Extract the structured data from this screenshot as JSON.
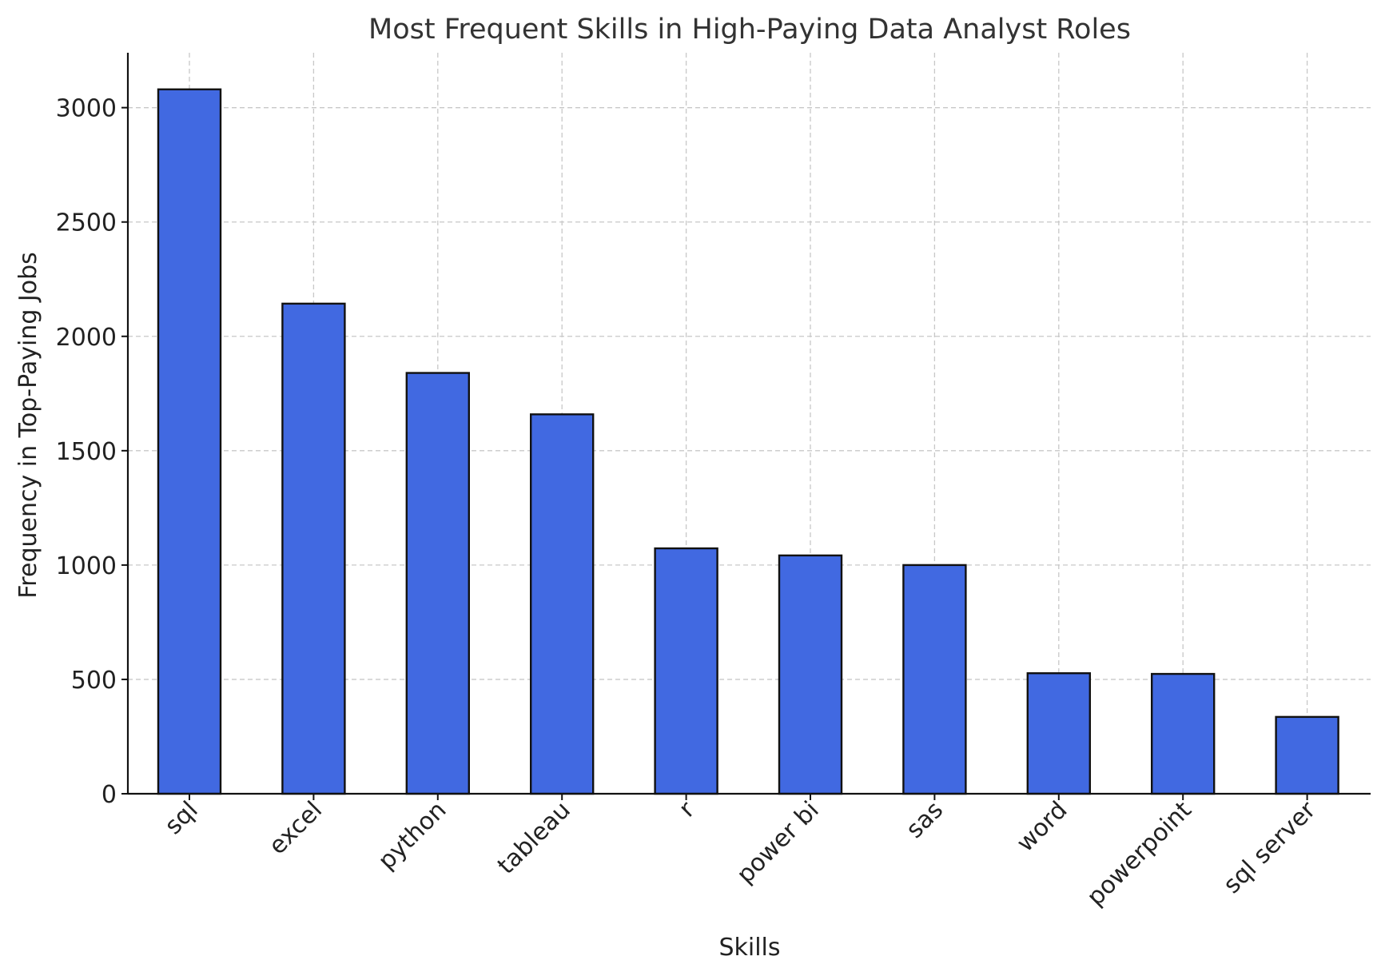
{
  "chart_data": {
    "type": "bar",
    "title": "Most Frequent Skills in High-Paying Data Analyst Roles",
    "xlabel": "Skills",
    "ylabel": "Frequency in Top-Paying Jobs",
    "categories": [
      "sql",
      "excel",
      "python",
      "tableau",
      "r",
      "power bi",
      "sas",
      "word",
      "powerpoint",
      "sql server"
    ],
    "values": [
      3080,
      2143,
      1840,
      1659,
      1073,
      1042,
      1000,
      527,
      524,
      336
    ],
    "ylim": [
      0,
      3240
    ],
    "yticks": [
      0,
      500,
      1000,
      1500,
      2000,
      2500,
      3000
    ],
    "grid": true,
    "bar_color": "#4169E1",
    "edge_color": "#111111"
  }
}
